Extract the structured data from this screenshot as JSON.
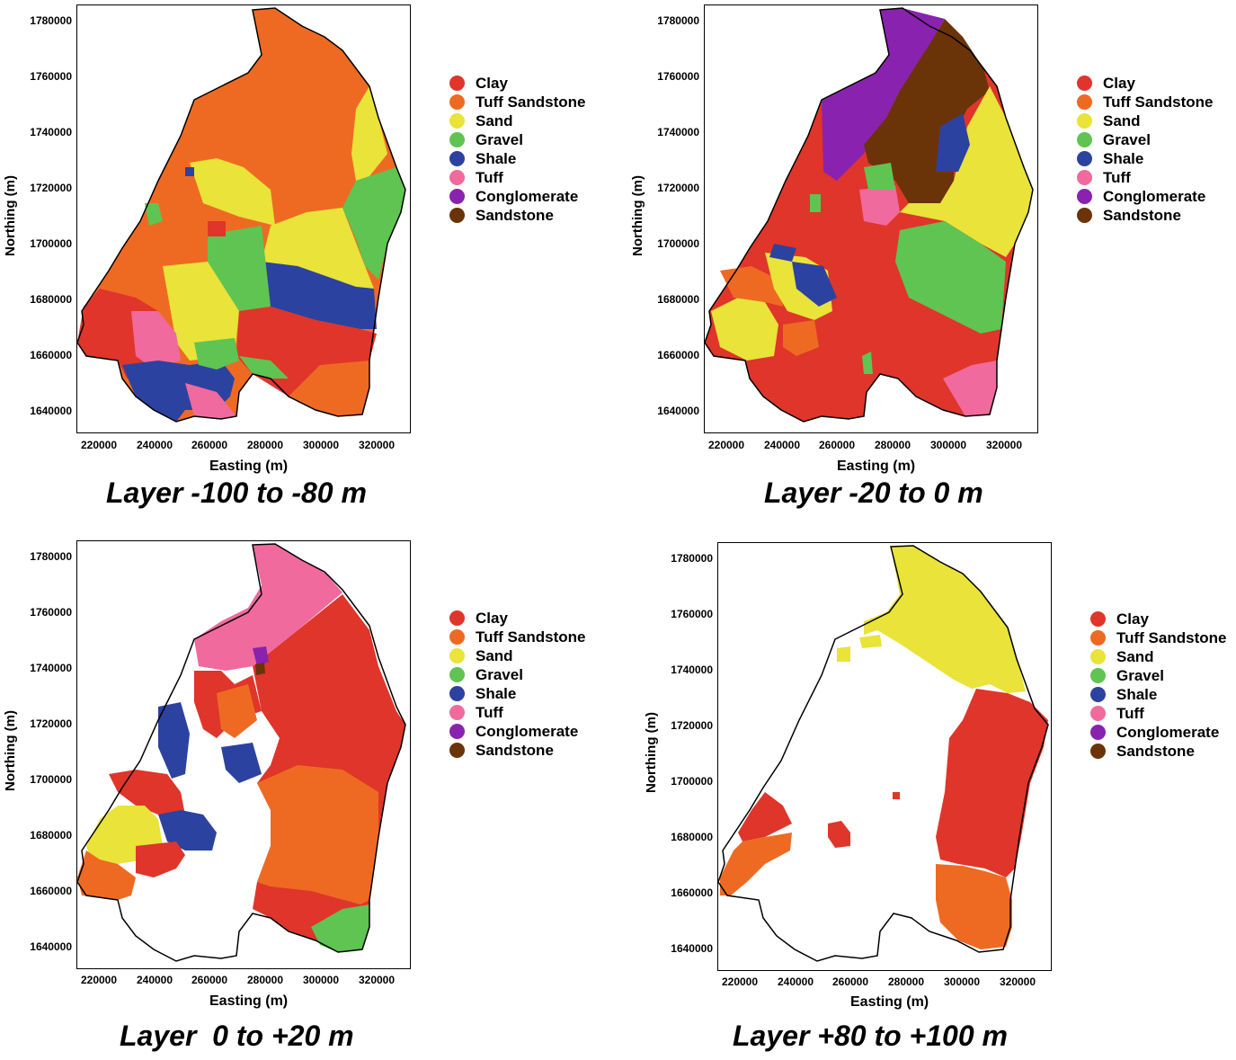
{
  "legend_items": [
    {
      "label": "Clay",
      "color": "#e0352a"
    },
    {
      "label": "Tuff Sandstone",
      "color": "#ee6a23"
    },
    {
      "label": "Sand",
      "color": "#e9e33a"
    },
    {
      "label": "Gravel",
      "color": "#5fc451"
    },
    {
      "label": "Shale",
      "color": "#2c42a0"
    },
    {
      "label": "Tuff",
      "color": "#f06a9e"
    },
    {
      "label": "Conglomerate",
      "color": "#8a22b0"
    },
    {
      "label": "Sandstone",
      "color": "#6b3308"
    }
  ],
  "axes": {
    "x_label": "Easting (m)",
    "y_label": "Northing (m)",
    "x_ticks": [
      "220000",
      "240000",
      "260000",
      "280000",
      "300000",
      "320000"
    ],
    "y_ticks": [
      "1780000",
      "1760000",
      "1740000",
      "1720000",
      "1700000",
      "1680000",
      "1660000",
      "1640000"
    ]
  },
  "panels": [
    {
      "caption": "Layer -100 to -80 m"
    },
    {
      "caption": "Layer -20 to 0 m"
    },
    {
      "caption": "Layer  0 to +20 m"
    },
    {
      "caption": "Layer +80 to +100 m"
    }
  ]
}
